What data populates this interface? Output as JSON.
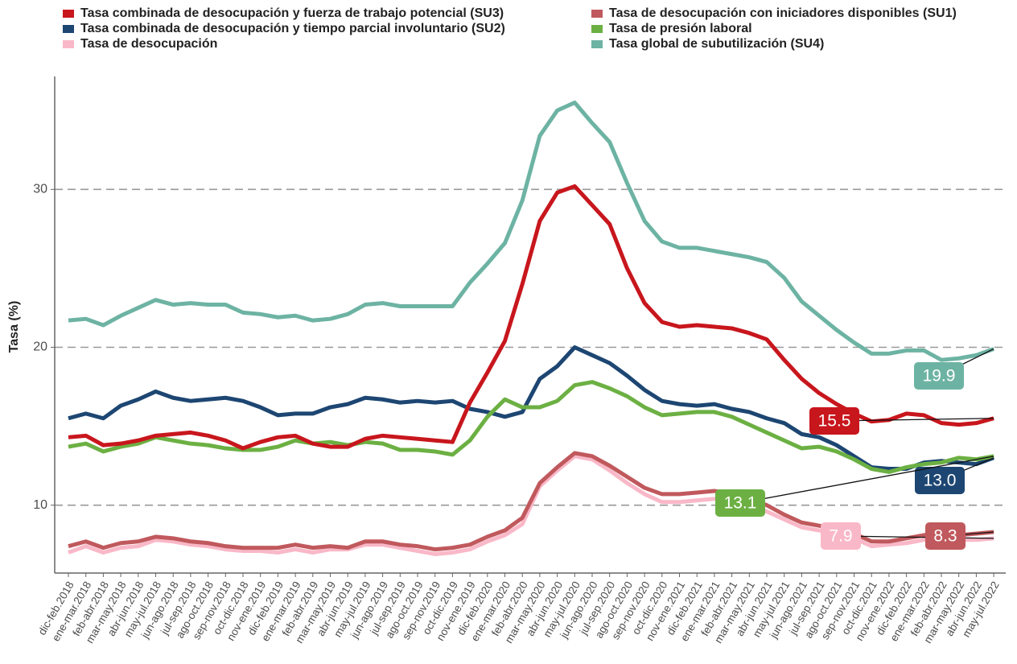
{
  "chart_data": {
    "type": "line",
    "y_label": "Tasa (%)",
    "categories": [
      "dic-feb.2018",
      "ene-mar.2018",
      "feb-abr.2018",
      "mar-may.2018",
      "abr-jun.2018",
      "may-jul.2018",
      "jun-ago.2018",
      "jul-sep.2018",
      "ago-oct.2018",
      "sep-nov.2018",
      "oct-dic.2018",
      "nov-ene.2019",
      "dic-feb.2019",
      "ene-mar.2019",
      "feb-abr.2019",
      "mar-may.2019",
      "abr-jun.2019",
      "may-jul.2019",
      "jun-ago.2019",
      "jul-sep.2019",
      "ago-oct.2019",
      "sep-nov.2019",
      "oct-dic.2019",
      "nov-ene.2019",
      "dic-feb.2020",
      "ene-mar.2020",
      "feb-abr.2020",
      "mar-may.2020",
      "abr-jun.2020",
      "may-jul.2020",
      "jun-ago.2020",
      "jul-sep.2020",
      "ago-oct.2020",
      "sep-nov.2020",
      "oct-dic.2020",
      "nov-ene.2021",
      "dic-feb.2021",
      "ene-mar.2021",
      "feb-abr.2021",
      "mar-may.2021",
      "abr-jun.2021",
      "may-jul.2021",
      "jun-ago.2021",
      "jul-sep.2021",
      "ago-oct.2021",
      "sep-nov.2021",
      "oct-dic.2021",
      "nov-ene.2022",
      "dic-feb.2022",
      "ene-mar.2022",
      "feb-abr.2022",
      "mar-may.2022",
      "abr-jun.2022",
      "may-jul.2022"
    ],
    "ylim": [
      5.7,
      36.9
    ],
    "yticks": [
      10,
      20,
      30
    ],
    "grid": true,
    "legend": "top",
    "series": [
      {
        "name": "Tasa combinada de desocupación y fuerza de trabajo potencial (SU3)",
        "color": "#c8161d",
        "end_label": "15.5",
        "values": [
          14.3,
          14.4,
          13.8,
          13.9,
          14.1,
          14.4,
          14.5,
          14.6,
          14.4,
          14.1,
          13.6,
          14.0,
          14.3,
          14.4,
          13.9,
          13.7,
          13.7,
          14.2,
          14.4,
          14.3,
          14.2,
          14.1,
          14.0,
          16.5,
          18.4,
          20.4,
          24.0,
          28.0,
          29.8,
          30.2,
          29.0,
          27.8,
          25.0,
          22.8,
          21.6,
          21.3,
          21.4,
          21.3,
          21.2,
          20.9,
          20.5,
          19.2,
          18.0,
          17.1,
          16.4,
          15.8,
          15.3,
          15.4,
          15.8,
          15.7,
          15.2,
          15.1,
          15.2,
          15.5
        ]
      },
      {
        "name": "Tasa combinada de desocupación y tiempo parcial involuntario (SU2)",
        "color": "#1d4672",
        "end_label": "13.0",
        "values": [
          15.5,
          15.8,
          15.5,
          16.3,
          16.7,
          17.2,
          16.8,
          16.6,
          16.7,
          16.8,
          16.6,
          16.2,
          15.7,
          15.8,
          15.8,
          16.2,
          16.4,
          16.8,
          16.7,
          16.5,
          16.6,
          16.5,
          16.6,
          16.1,
          15.9,
          15.6,
          15.9,
          18.0,
          18.8,
          20.0,
          19.5,
          19.0,
          18.2,
          17.3,
          16.6,
          16.4,
          16.3,
          16.4,
          16.1,
          15.9,
          15.5,
          15.2,
          14.5,
          14.3,
          13.8,
          13.1,
          12.4,
          12.3,
          12.3,
          12.7,
          12.8,
          12.7,
          12.6,
          13.0
        ]
      },
      {
        "name": "Tasa de desocupación",
        "color": "#f9b8c8",
        "end_label": "7.9",
        "values": [
          7.0,
          7.4,
          7.0,
          7.3,
          7.4,
          7.8,
          7.7,
          7.5,
          7.4,
          7.2,
          7.1,
          7.1,
          7.0,
          7.2,
          7.0,
          7.2,
          7.2,
          7.5,
          7.5,
          7.3,
          7.1,
          6.9,
          7.0,
          7.2,
          7.7,
          8.1,
          8.8,
          11.2,
          12.2,
          13.1,
          12.9,
          12.2,
          11.4,
          10.7,
          10.2,
          10.2,
          10.3,
          10.4,
          10.3,
          10.0,
          9.6,
          9.1,
          8.6,
          8.4,
          8.3,
          7.9,
          7.4,
          7.5,
          7.6,
          7.8,
          7.8,
          7.8,
          7.8,
          7.9
        ]
      },
      {
        "name": "Tasa de desocupación con iniciadores disponibles (SU1)",
        "color": "#c0595d",
        "end_label": "8.3",
        "values": [
          7.4,
          7.7,
          7.3,
          7.6,
          7.7,
          8.0,
          7.9,
          7.7,
          7.6,
          7.4,
          7.3,
          7.3,
          7.3,
          7.5,
          7.3,
          7.4,
          7.3,
          7.7,
          7.7,
          7.5,
          7.4,
          7.2,
          7.3,
          7.5,
          8.0,
          8.4,
          9.2,
          11.4,
          12.4,
          13.3,
          13.1,
          12.5,
          11.8,
          11.1,
          10.7,
          10.7,
          10.8,
          10.9,
          10.7,
          10.4,
          10.0,
          9.4,
          8.9,
          8.7,
          8.5,
          8.2,
          7.7,
          7.7,
          7.9,
          8.1,
          8.2,
          8.1,
          8.2,
          8.3
        ]
      },
      {
        "name": "Tasa de presión laboral",
        "color": "#6cb043",
        "end_label": "13.1",
        "values": [
          13.7,
          13.9,
          13.4,
          13.7,
          13.9,
          14.3,
          14.1,
          13.9,
          13.8,
          13.6,
          13.5,
          13.5,
          13.7,
          14.1,
          13.9,
          14.0,
          13.8,
          14.0,
          13.9,
          13.5,
          13.5,
          13.4,
          13.2,
          14.1,
          15.6,
          16.7,
          16.2,
          16.2,
          16.6,
          17.6,
          17.8,
          17.4,
          16.9,
          16.2,
          15.7,
          15.8,
          15.9,
          15.9,
          15.6,
          15.1,
          14.6,
          14.1,
          13.6,
          13.7,
          13.4,
          12.9,
          12.3,
          12.1,
          12.4,
          12.6,
          12.7,
          13.0,
          12.9,
          13.1
        ]
      },
      {
        "name": "Tasa global de subutilización (SU4)",
        "color": "#6db3a3",
        "end_label": "19.9",
        "values": [
          21.7,
          21.8,
          21.4,
          22.0,
          22.5,
          23.0,
          22.7,
          22.8,
          22.7,
          22.7,
          22.2,
          22.1,
          21.9,
          22.0,
          21.7,
          21.8,
          22.1,
          22.7,
          22.8,
          22.6,
          22.6,
          22.6,
          22.6,
          24.1,
          25.3,
          26.6,
          29.3,
          33.4,
          35.0,
          35.5,
          34.2,
          33.0,
          30.4,
          28.0,
          26.7,
          26.3,
          26.3,
          26.1,
          25.9,
          25.7,
          25.4,
          24.4,
          22.9,
          22.0,
          21.1,
          20.3,
          19.6,
          19.6,
          19.8,
          19.8,
          19.2,
          19.3,
          19.5,
          19.9
        ]
      }
    ]
  }
}
